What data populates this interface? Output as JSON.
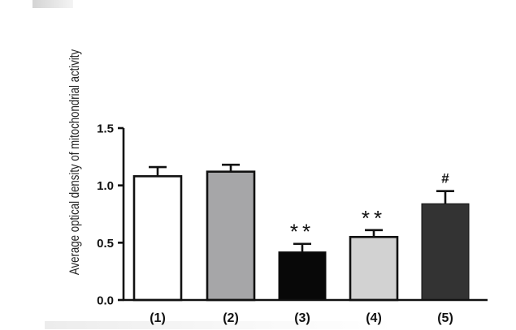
{
  "chart_data": {
    "type": "bar",
    "ylabel": "Average optical density of  mitochondrial activity",
    "xlabel": "",
    "title": "",
    "ylim": [
      0,
      1.5
    ],
    "yticks": [
      {
        "value": 0.0,
        "label": "0.0"
      },
      {
        "value": 0.5,
        "label": "0.5"
      },
      {
        "value": 1.0,
        "label": "1.0"
      },
      {
        "value": 1.5,
        "label": "1.5"
      }
    ],
    "categories": [
      "(1)",
      "(2)",
      "(3)",
      "(4)",
      "(5)"
    ],
    "values": [
      1.08,
      1.12,
      0.42,
      0.55,
      0.84
    ],
    "errors": [
      0.08,
      0.06,
      0.07,
      0.06,
      0.11
    ],
    "fills": [
      "#ffffff",
      "#a6a6a8",
      "#080808",
      "#d2d2d2",
      "#333333"
    ],
    "annotations": [
      "",
      "",
      "**",
      "**",
      "#"
    ],
    "grid": false,
    "legend": "none"
  }
}
